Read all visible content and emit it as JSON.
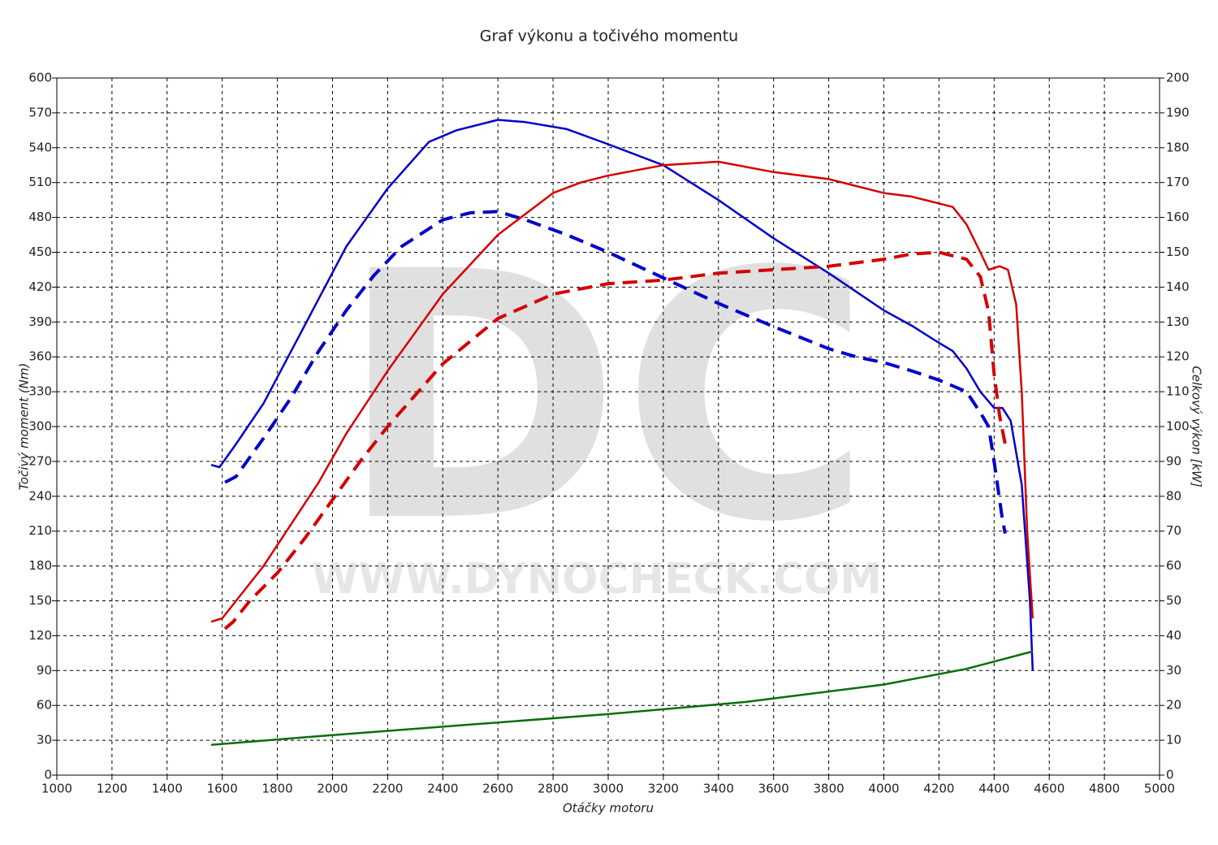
{
  "chart_data": {
    "type": "line",
    "title": "Graf výkonu a točivého momentu",
    "xlabel": "Otáčky motoru",
    "ylabel": "Točivý moment (Nm)",
    "y2label": "Celkový výkon [kW]",
    "watermark": {
      "logo": "DC",
      "url": "WWW.DYNOCHECK.COM"
    },
    "xlim": [
      1000,
      5000
    ],
    "xticks": [
      1000,
      1200,
      1400,
      1600,
      1800,
      2000,
      2200,
      2400,
      2600,
      2800,
      3000,
      3200,
      3400,
      3600,
      3800,
      4000,
      4200,
      4400,
      4600,
      4800,
      5000
    ],
    "ylim": [
      0,
      600
    ],
    "yticks": [
      0,
      30,
      60,
      90,
      120,
      150,
      180,
      210,
      240,
      270,
      300,
      330,
      360,
      390,
      420,
      450,
      480,
      510,
      540,
      570,
      600
    ],
    "y2lim": [
      0,
      200
    ],
    "y2ticks": [
      0,
      10,
      20,
      30,
      40,
      50,
      60,
      70,
      80,
      90,
      100,
      110,
      120,
      130,
      140,
      150,
      160,
      170,
      180,
      190,
      200
    ],
    "grid": true,
    "series": [
      {
        "color": "#0000c8",
        "dash": false,
        "axis": "y",
        "x": [
          1560,
          1590,
          1650,
          1750,
          1850,
          1950,
          2050,
          2200,
          2350,
          2450,
          2600,
          2700,
          2850,
          3000,
          3200,
          3400,
          3600,
          3800,
          4000,
          4100,
          4200,
          4250,
          4300,
          4350,
          4400,
          4430,
          4460,
          4500,
          4530,
          4540
        ],
        "values": [
          267,
          265,
          285,
          320,
          365,
          410,
          455,
          505,
          545,
          555,
          564,
          562,
          556,
          543,
          525,
          495,
          462,
          432,
          400,
          387,
          372,
          365,
          350,
          330,
          316,
          316,
          305,
          250,
          150,
          90
        ]
      },
      {
        "color": "#0000c8",
        "dash": true,
        "axis": "y",
        "x": [
          1610,
          1650,
          1750,
          1850,
          1950,
          2050,
          2150,
          2250,
          2400,
          2500,
          2600,
          2700,
          2850,
          3000,
          3200,
          3400,
          3600,
          3800,
          3900,
          4000,
          4100,
          4200,
          4300,
          4350,
          4380,
          4400,
          4430,
          4440
        ],
        "values": [
          252,
          257,
          290,
          325,
          365,
          400,
          430,
          455,
          478,
          484,
          485,
          478,
          465,
          450,
          428,
          406,
          386,
          367,
          360,
          355,
          348,
          340,
          330,
          312,
          300,
          270,
          220,
          208
        ]
      },
      {
        "color": "#d40000",
        "dash": false,
        "axis": "y2",
        "x": [
          1560,
          1600,
          1650,
          1750,
          1850,
          1950,
          2050,
          2200,
          2400,
          2600,
          2800,
          2900,
          3000,
          3200,
          3400,
          3600,
          3800,
          3900,
          4000,
          4100,
          4200,
          4250,
          4300,
          4350,
          4380,
          4420,
          4450,
          4480,
          4500,
          4520,
          4540
        ],
        "values": [
          44,
          45,
          50,
          60,
          72,
          84,
          98,
          116,
          138,
          155,
          167,
          170,
          172,
          175,
          176,
          173,
          171,
          169,
          167,
          166,
          164,
          163,
          158,
          150,
          145,
          146,
          145,
          135,
          110,
          70,
          45
        ]
      },
      {
        "color": "#d40000",
        "dash": true,
        "axis": "y2",
        "x": [
          1610,
          1640,
          1700,
          1800,
          1900,
          2000,
          2100,
          2200,
          2400,
          2600,
          2800,
          3000,
          3200,
          3400,
          3600,
          3800,
          4000,
          4100,
          4200,
          4300,
          4350,
          4380,
          4400,
          4420,
          4440
        ],
        "values": [
          42,
          44,
          50,
          58,
          68,
          79,
          90,
          100,
          118,
          131,
          138,
          141,
          142,
          144,
          145,
          146,
          148,
          149.5,
          150,
          148,
          143,
          133,
          115,
          103,
          95
        ]
      },
      {
        "color": "#0a6e0a",
        "dash": false,
        "axis": "y2",
        "x": [
          1560,
          2000,
          2500,
          3000,
          3500,
          4000,
          4300,
          4540
        ],
        "values": [
          8.7,
          11.5,
          14.5,
          17.5,
          21,
          26,
          30.5,
          35.5
        ]
      }
    ]
  }
}
